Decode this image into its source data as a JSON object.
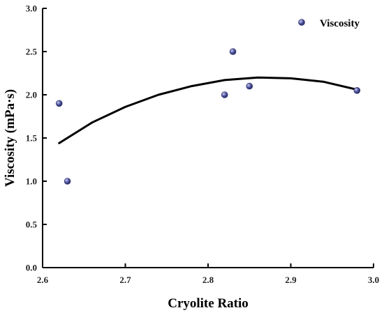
{
  "chart_data": {
    "type": "scatter",
    "title": "",
    "xlabel": "Cryolite Ratio",
    "ylabel": "Viscosity (mPa·s)",
    "xlim": [
      2.6,
      3.0
    ],
    "ylim": [
      0.0,
      3.0
    ],
    "xticks": [
      "2.6",
      "2.7",
      "2.8",
      "2.9",
      "3.0"
    ],
    "yticks": [
      "0.0",
      "0.5",
      "1.0",
      "1.5",
      "2.0",
      "2.5",
      "3.0"
    ],
    "legend": {
      "position": "top-right",
      "entries": [
        "Viscosity"
      ]
    },
    "grid": false,
    "series": [
      {
        "name": "Viscosity",
        "color": "#4a4f9a",
        "x": [
          2.62,
          2.63,
          2.82,
          2.83,
          2.85,
          2.98
        ],
        "y": [
          1.9,
          1.0,
          2.0,
          2.5,
          2.1,
          2.05
        ]
      }
    ],
    "fit": {
      "type": "polynomial-2",
      "color": "#000000",
      "x": [
        2.62,
        2.66,
        2.7,
        2.74,
        2.78,
        2.82,
        2.86,
        2.9,
        2.94,
        2.98
      ],
      "y": [
        1.44,
        1.68,
        1.86,
        2.0,
        2.1,
        2.17,
        2.2,
        2.19,
        2.15,
        2.06
      ]
    }
  }
}
